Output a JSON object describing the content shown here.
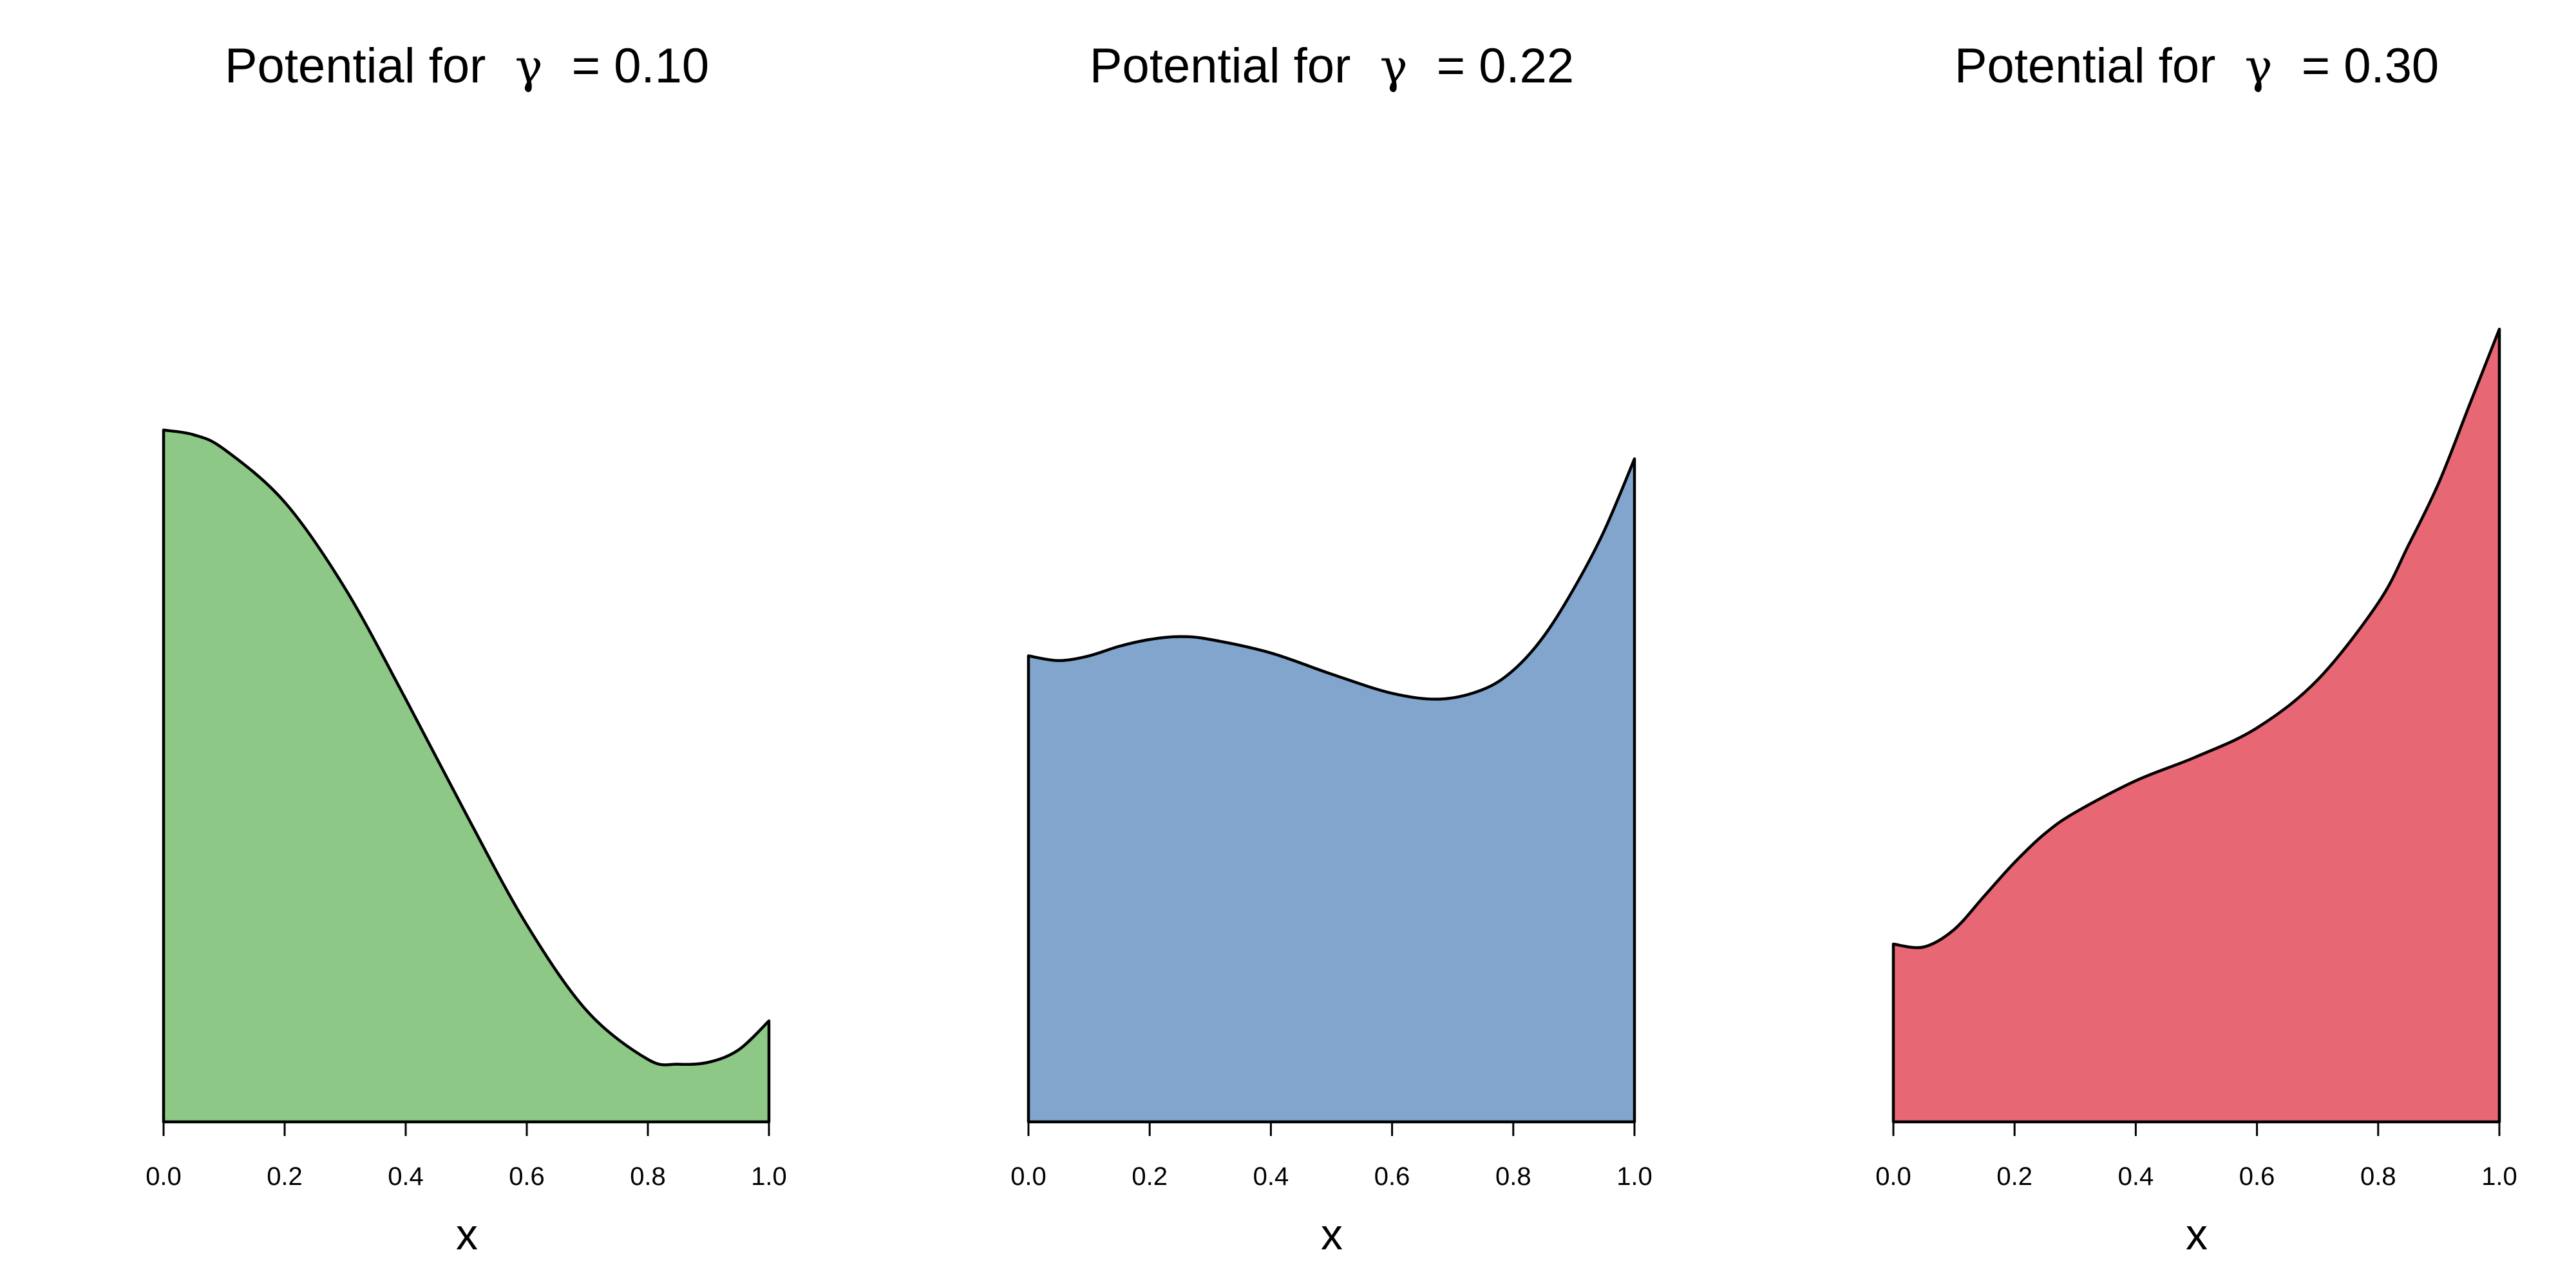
{
  "chart_data": [
    {
      "type": "area",
      "title": "Potential for γ = 0.10",
      "title_prefix": "Potential for",
      "title_symbol": "γ",
      "title_value": "= 0.10",
      "xlabel": "x",
      "ylabel": "",
      "xlim": [
        0,
        1
      ],
      "ylim": [
        0,
        1
      ],
      "y_axis_shown": false,
      "x_ticks": [
        "0.0",
        "0.2",
        "0.4",
        "0.6",
        "0.8",
        "1.0"
      ],
      "fill_color": "#8DC887",
      "x": [
        0.0,
        0.05,
        0.1,
        0.2,
        0.3,
        0.4,
        0.5,
        0.6,
        0.7,
        0.8,
        0.85,
        0.9,
        0.95,
        1.0
      ],
      "y": [
        0.72,
        0.715,
        0.7,
        0.645,
        0.555,
        0.44,
        0.32,
        0.205,
        0.115,
        0.065,
        0.06,
        0.062,
        0.075,
        0.105
      ]
    },
    {
      "type": "area",
      "title": "Potential for γ = 0.22",
      "title_prefix": "Potential for",
      "title_symbol": "γ",
      "title_value": "= 0.22",
      "xlabel": "x",
      "ylabel": "",
      "xlim": [
        0,
        1
      ],
      "ylim": [
        0,
        1
      ],
      "y_axis_shown": false,
      "x_ticks": [
        "0.0",
        "0.2",
        "0.4",
        "0.6",
        "0.8",
        "1.0"
      ],
      "fill_color": "#81A5CC",
      "x": [
        0.0,
        0.05,
        0.1,
        0.15,
        0.2,
        0.25,
        0.3,
        0.4,
        0.5,
        0.6,
        0.68,
        0.75,
        0.8,
        0.85,
        0.9,
        0.95,
        1.0
      ],
      "y": [
        0.485,
        0.48,
        0.485,
        0.495,
        0.502,
        0.505,
        0.502,
        0.488,
        0.466,
        0.446,
        0.44,
        0.45,
        0.47,
        0.505,
        0.555,
        0.615,
        0.69
      ]
    },
    {
      "type": "area",
      "title": "Potential for γ = 0.30",
      "title_prefix": "Potential for",
      "title_symbol": "γ",
      "title_value": "= 0.30",
      "xlabel": "x",
      "ylabel": "",
      "xlim": [
        0,
        1
      ],
      "ylim": [
        0,
        1
      ],
      "y_axis_shown": false,
      "x_ticks": [
        "0.0",
        "0.2",
        "0.4",
        "0.6",
        "0.8",
        "1.0"
      ],
      "fill_color": "#E76775",
      "x": [
        0.0,
        0.05,
        0.1,
        0.15,
        0.2,
        0.25,
        0.3,
        0.4,
        0.5,
        0.6,
        0.7,
        0.8,
        0.85,
        0.9,
        0.95,
        1.0
      ],
      "y": [
        0.185,
        0.182,
        0.2,
        0.235,
        0.27,
        0.3,
        0.322,
        0.355,
        0.38,
        0.41,
        0.46,
        0.54,
        0.6,
        0.665,
        0.745,
        0.825
      ]
    }
  ]
}
